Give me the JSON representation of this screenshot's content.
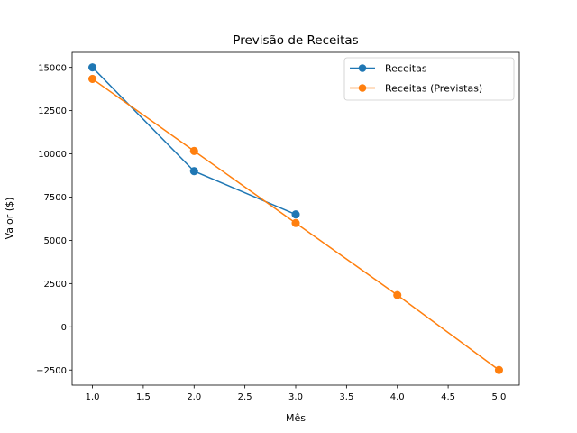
{
  "chart_data": {
    "type": "line",
    "title": "Previsão de Receitas",
    "xlabel": "Mês",
    "ylabel": "Valor ($)",
    "xlim": [
      0.8,
      5.2
    ],
    "ylim": [
      -3375,
      15870
    ],
    "xticks": [
      1.0,
      1.5,
      2.0,
      2.5,
      3.0,
      3.5,
      4.0,
      4.5,
      5.0
    ],
    "xtick_labels": [
      "1.0",
      "1.5",
      "2.0",
      "2.5",
      "3.0",
      "3.5",
      "4.0",
      "4.5",
      "5.0"
    ],
    "yticks": [
      -2500,
      0,
      2500,
      5000,
      7500,
      10000,
      12500,
      15000
    ],
    "ytick_labels": [
      "−2500",
      "0",
      "2500",
      "5000",
      "7500",
      "10000",
      "12500",
      "15000"
    ],
    "grid": false,
    "legend_position": "top-right",
    "series": [
      {
        "name": "Receitas",
        "color": "#1f77b4",
        "marker": "circle",
        "x": [
          1,
          2,
          3
        ],
        "y": [
          15000,
          9000,
          6500
        ]
      },
      {
        "name": "Receitas (Previstas)",
        "color": "#ff7f0e",
        "marker": "circle",
        "x": [
          1,
          2,
          3,
          4,
          5
        ],
        "y": [
          14333,
          10167,
          6000,
          1833,
          -2500
        ]
      }
    ]
  }
}
